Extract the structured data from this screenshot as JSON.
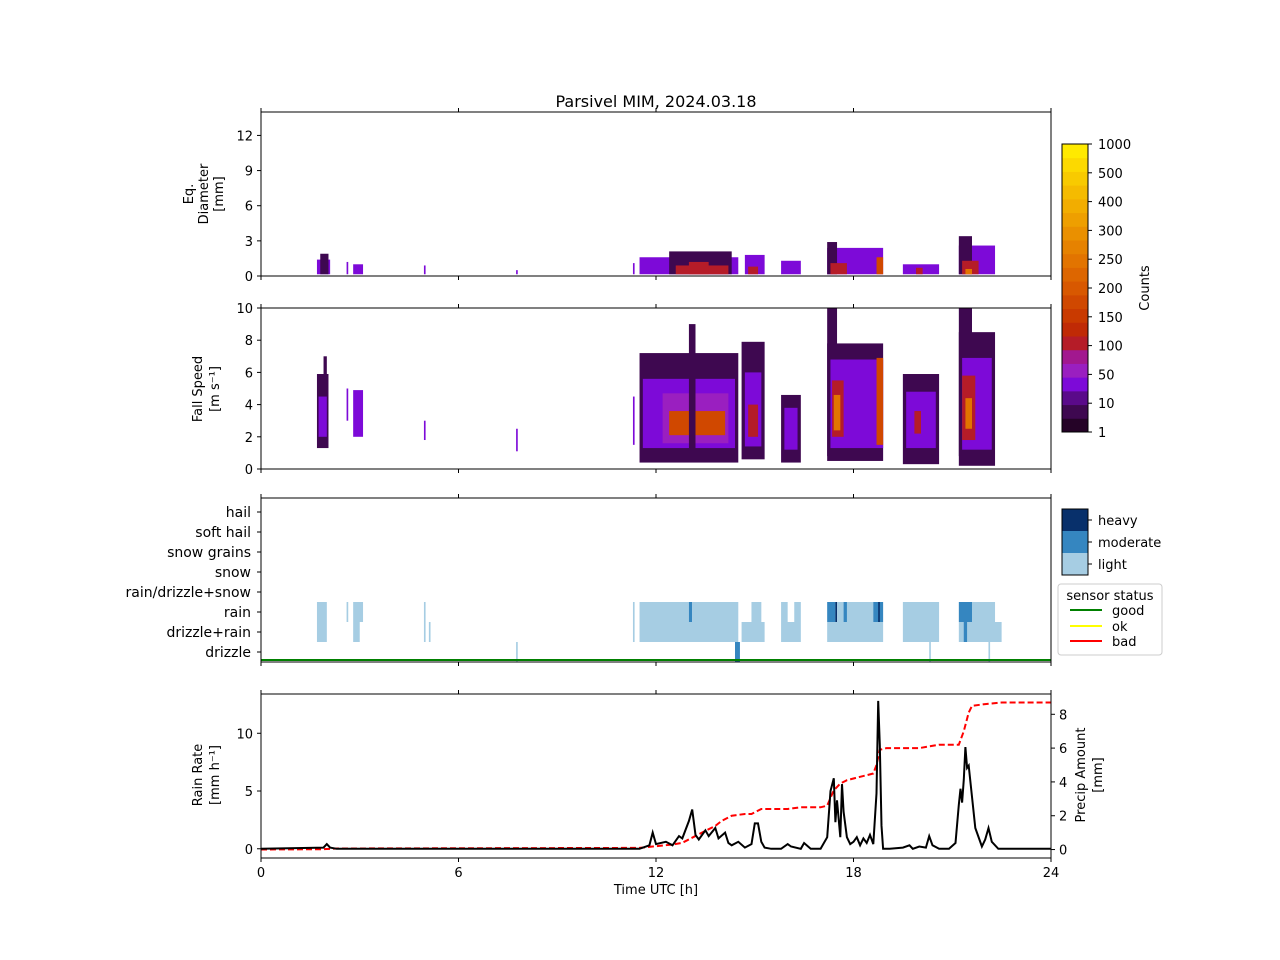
{
  "title": "Parsivel MIM, 2024.03.18",
  "colors": {
    "black": "#000000",
    "cumulative": "#ff0000",
    "status_good": "#008000",
    "status_ok": "#ffff00",
    "status_bad": "#ff0000",
    "light": "#a6cde3",
    "moderate": "#3586c0",
    "heavy": "#08306b"
  },
  "chart_data": [
    {
      "type": "heatmap",
      "panel": "diameter",
      "ylabel_lines": [
        "Eq.",
        "Diameter",
        "[mm]"
      ],
      "x_ticks": [
        0,
        6,
        12,
        18,
        24
      ],
      "xlim": [
        0,
        24
      ],
      "ylim": [
        0,
        14
      ],
      "y_ticks": [
        0,
        3,
        6,
        9,
        12
      ],
      "cells": [
        {
          "t0": 1.7,
          "t1": 2.1,
          "top": 1.4,
          "level": 1
        },
        {
          "t0": 1.8,
          "t1": 2.05,
          "top": 1.9,
          "level": 0
        },
        {
          "t0": 2.6,
          "t1": 2.65,
          "top": 1.2,
          "level": 1
        },
        {
          "t0": 2.8,
          "t1": 3.1,
          "top": 1.0,
          "level": 1
        },
        {
          "t0": 4.95,
          "t1": 5.0,
          "top": 0.9,
          "level": 1
        },
        {
          "t0": 7.75,
          "t1": 7.8,
          "top": 0.5,
          "level": 1
        },
        {
          "t0": 11.3,
          "t1": 11.35,
          "top": 1.1,
          "level": 1
        },
        {
          "t0": 11.5,
          "t1": 14.5,
          "top": 1.6,
          "level": 1
        },
        {
          "t0": 12.4,
          "t1": 14.3,
          "top": 2.1,
          "level": 0
        },
        {
          "t0": 12.6,
          "t1": 14.2,
          "top": 0.9,
          "level": 3
        },
        {
          "t0": 13.0,
          "t1": 13.6,
          "top": 1.2,
          "level": 3
        },
        {
          "t0": 14.7,
          "t1": 15.3,
          "top": 1.8,
          "level": 1
        },
        {
          "t0": 14.8,
          "t1": 15.1,
          "top": 0.8,
          "level": 3
        },
        {
          "t0": 15.8,
          "t1": 16.4,
          "top": 1.3,
          "level": 1
        },
        {
          "t0": 17.2,
          "t1": 18.9,
          "top": 2.4,
          "level": 1
        },
        {
          "t0": 17.2,
          "t1": 17.5,
          "top": 2.9,
          "level": 0
        },
        {
          "t0": 17.3,
          "t1": 17.8,
          "top": 1.1,
          "level": 3
        },
        {
          "t0": 18.7,
          "t1": 18.9,
          "top": 1.6,
          "level": 4
        },
        {
          "t0": 19.5,
          "t1": 20.6,
          "top": 1.0,
          "level": 1
        },
        {
          "t0": 19.9,
          "t1": 20.1,
          "top": 0.7,
          "level": 3
        },
        {
          "t0": 21.2,
          "t1": 22.3,
          "top": 2.6,
          "level": 1
        },
        {
          "t0": 21.2,
          "t1": 21.6,
          "top": 3.4,
          "level": 0
        },
        {
          "t0": 21.3,
          "t1": 21.8,
          "top": 1.3,
          "level": 3
        },
        {
          "t0": 21.4,
          "t1": 21.6,
          "top": 0.6,
          "level": 5
        }
      ]
    },
    {
      "type": "heatmap",
      "panel": "fallspeed",
      "ylabel_lines": [
        "Fall Speed",
        "[m s⁻¹]"
      ],
      "xlim": [
        0,
        24
      ],
      "ylim": [
        0,
        10
      ],
      "y_ticks": [
        0,
        2,
        4,
        6,
        8,
        10
      ],
      "cells": [
        {
          "t0": 1.7,
          "t1": 2.05,
          "bottom": 1.3,
          "top": 5.9,
          "level": 0
        },
        {
          "t0": 1.9,
          "t1": 2.0,
          "bottom": 2.0,
          "top": 7.0,
          "level": 0
        },
        {
          "t0": 1.75,
          "t1": 2.0,
          "bottom": 2.0,
          "top": 4.5,
          "level": 1
        },
        {
          "t0": 2.6,
          "t1": 2.65,
          "bottom": 3.0,
          "top": 5.0,
          "level": 1
        },
        {
          "t0": 2.8,
          "t1": 3.1,
          "bottom": 2.0,
          "top": 4.9,
          "level": 1
        },
        {
          "t0": 4.95,
          "t1": 5.0,
          "bottom": 1.8,
          "top": 3.0,
          "level": 1
        },
        {
          "t0": 7.75,
          "t1": 7.8,
          "bottom": 1.1,
          "top": 2.5,
          "level": 1
        },
        {
          "t0": 11.3,
          "t1": 11.35,
          "bottom": 1.5,
          "top": 4.5,
          "level": 1
        },
        {
          "t0": 11.5,
          "t1": 14.5,
          "bottom": 0.4,
          "top": 7.2,
          "level": 0
        },
        {
          "t0": 11.6,
          "t1": 14.4,
          "bottom": 1.3,
          "top": 5.6,
          "level": 1
        },
        {
          "t0": 12.2,
          "t1": 14.2,
          "bottom": 1.6,
          "top": 4.7,
          "level": 2
        },
        {
          "t0": 12.4,
          "t1": 14.1,
          "bottom": 2.1,
          "top": 3.6,
          "level": 4
        },
        {
          "t0": 13.0,
          "t1": 13.2,
          "bottom": 1.2,
          "top": 9.0,
          "level": 0
        },
        {
          "t0": 14.6,
          "t1": 15.3,
          "bottom": 0.6,
          "top": 7.9,
          "level": 0
        },
        {
          "t0": 14.7,
          "t1": 15.2,
          "bottom": 1.4,
          "top": 6.0,
          "level": 1
        },
        {
          "t0": 14.8,
          "t1": 15.1,
          "bottom": 2.0,
          "top": 4.0,
          "level": 3
        },
        {
          "t0": 15.8,
          "t1": 16.4,
          "bottom": 0.4,
          "top": 4.6,
          "level": 0
        },
        {
          "t0": 15.9,
          "t1": 16.3,
          "bottom": 1.2,
          "top": 3.8,
          "level": 1
        },
        {
          "t0": 17.2,
          "t1": 18.9,
          "bottom": 0.5,
          "top": 7.8,
          "level": 0
        },
        {
          "t0": 17.2,
          "t1": 17.5,
          "bottom": 0.8,
          "top": 10.0,
          "level": 0
        },
        {
          "t0": 17.3,
          "t1": 18.9,
          "bottom": 1.3,
          "top": 6.8,
          "level": 1
        },
        {
          "t0": 17.35,
          "t1": 17.7,
          "bottom": 2.0,
          "top": 5.5,
          "level": 3
        },
        {
          "t0": 17.4,
          "t1": 17.6,
          "bottom": 2.4,
          "top": 4.6,
          "level": 5
        },
        {
          "t0": 18.7,
          "t1": 18.9,
          "bottom": 1.5,
          "top": 6.9,
          "level": 4
        },
        {
          "t0": 19.5,
          "t1": 20.6,
          "bottom": 0.3,
          "top": 5.9,
          "level": 0
        },
        {
          "t0": 19.6,
          "t1": 20.5,
          "bottom": 1.3,
          "top": 4.8,
          "level": 1
        },
        {
          "t0": 19.85,
          "t1": 20.05,
          "bottom": 2.2,
          "top": 3.6,
          "level": 3
        },
        {
          "t0": 21.2,
          "t1": 22.3,
          "bottom": 0.2,
          "top": 8.5,
          "level": 0
        },
        {
          "t0": 21.2,
          "t1": 21.6,
          "bottom": 0.8,
          "top": 10.0,
          "level": 0
        },
        {
          "t0": 21.3,
          "t1": 22.2,
          "bottom": 1.2,
          "top": 6.9,
          "level": 1
        },
        {
          "t0": 21.3,
          "t1": 21.7,
          "bottom": 1.8,
          "top": 5.8,
          "level": 3
        },
        {
          "t0": 21.4,
          "t1": 21.6,
          "bottom": 2.5,
          "top": 4.4,
          "level": 5
        }
      ]
    },
    {
      "type": "table",
      "panel": "precip_type",
      "categories": [
        "hail",
        "soft hail",
        "snow grains",
        "snow",
        "rain/drizzle+snow",
        "rain",
        "drizzle+rain",
        "drizzle"
      ],
      "intensity_labels": [
        "heavy",
        "moderate",
        "light"
      ],
      "legend_title": "sensor status",
      "status_labels": [
        "good",
        "ok",
        "bad"
      ],
      "status": "good",
      "bars": {
        "rain": [
          [
            1.7,
            2.0,
            "light"
          ],
          [
            2.6,
            2.65,
            "light"
          ],
          [
            2.8,
            3.1,
            "light"
          ],
          [
            4.95,
            5.0,
            "light"
          ],
          [
            11.3,
            11.35,
            "light"
          ],
          [
            11.5,
            13.0,
            "light"
          ],
          [
            13.0,
            13.1,
            "moderate"
          ],
          [
            13.1,
            14.5,
            "light"
          ],
          [
            14.9,
            15.2,
            "light"
          ],
          [
            15.8,
            16.0,
            "light"
          ],
          [
            16.2,
            16.4,
            "light"
          ],
          [
            17.2,
            17.45,
            "moderate"
          ],
          [
            17.45,
            17.5,
            "heavy"
          ],
          [
            17.5,
            18.6,
            "light"
          ],
          [
            17.7,
            17.8,
            "moderate"
          ],
          [
            18.6,
            18.9,
            "moderate"
          ],
          [
            18.75,
            18.8,
            "heavy"
          ],
          [
            19.5,
            20.6,
            "light"
          ],
          [
            21.2,
            21.6,
            "moderate"
          ],
          [
            21.6,
            22.3,
            "light"
          ]
        ],
        "drizzle+rain": [
          [
            1.7,
            2.0,
            "light"
          ],
          [
            2.8,
            3.0,
            "light"
          ],
          [
            4.95,
            5.0,
            "light"
          ],
          [
            5.1,
            5.15,
            "light"
          ],
          [
            11.3,
            11.35,
            "light"
          ],
          [
            11.5,
            14.5,
            "light"
          ],
          [
            14.6,
            15.3,
            "light"
          ],
          [
            15.8,
            16.4,
            "light"
          ],
          [
            17.2,
            18.9,
            "light"
          ],
          [
            19.5,
            20.6,
            "light"
          ],
          [
            21.2,
            22.5,
            "light"
          ],
          [
            21.35,
            21.45,
            "moderate"
          ]
        ],
        "drizzle": [
          [
            7.75,
            7.8,
            "light"
          ],
          [
            14.4,
            14.55,
            "moderate"
          ],
          [
            20.3,
            20.35,
            "light"
          ],
          [
            22.1,
            22.15,
            "light"
          ]
        ]
      }
    },
    {
      "type": "line",
      "panel": "rain_rate",
      "xlabel": "Time UTC [h]",
      "ylabel_lines": [
        "Rain Rate",
        "[mm h⁻¹]"
      ],
      "ylabel2_lines": [
        "Precip Amount",
        "[mm]"
      ],
      "xlim": [
        0,
        24
      ],
      "x_ticks": [
        0,
        6,
        12,
        18,
        24
      ],
      "ylim": [
        -0.8,
        13.4
      ],
      "y_ticks": [
        0,
        5,
        10
      ],
      "y2lim": [
        -0.5,
        9.2
      ],
      "y2_ticks": [
        0,
        2,
        4,
        6,
        8
      ],
      "series": [
        {
          "axis": "left",
          "x": [
            0,
            1.9,
            2.0,
            2.1,
            2.3,
            11.5,
            11.8,
            11.9,
            12.0,
            12.3,
            12.5,
            12.7,
            12.8,
            13.0,
            13.1,
            13.2,
            13.3,
            13.5,
            13.6,
            13.8,
            13.9,
            14.1,
            14.2,
            14.3,
            14.5,
            14.7,
            14.9,
            15.0,
            15.1,
            15.2,
            15.3,
            15.5,
            15.8,
            16.0,
            16.1,
            16.4,
            16.5,
            16.7,
            17.0,
            17.2,
            17.3,
            17.4,
            17.45,
            17.5,
            17.6,
            17.65,
            17.7,
            17.8,
            17.9,
            18.0,
            18.1,
            18.2,
            18.3,
            18.4,
            18.5,
            18.6,
            18.7,
            18.75,
            18.8,
            18.85,
            18.9,
            19.1,
            19.5,
            19.7,
            19.8,
            20.0,
            20.2,
            20.3,
            20.4,
            20.6,
            20.9,
            21.1,
            21.2,
            21.25,
            21.3,
            21.35,
            21.4,
            21.45,
            21.5,
            21.6,
            21.7,
            21.9,
            22.0,
            22.1,
            22.2,
            22.4,
            24
          ],
          "y": [
            0,
            0.1,
            0.4,
            0.1,
            0,
            0,
            0.3,
            1.4,
            0.4,
            0.6,
            0.3,
            1.1,
            0.9,
            2.4,
            3.4,
            1.2,
            0.8,
            1.6,
            1.1,
            1.8,
            0.9,
            1.4,
            0.5,
            0.3,
            0.6,
            0.1,
            0.4,
            2.2,
            2.2,
            0.6,
            0.1,
            0,
            0,
            0.4,
            0.2,
            0,
            0.5,
            0,
            0,
            1.0,
            5.0,
            6.1,
            2.3,
            4.2,
            1.0,
            5.6,
            3.2,
            1.0,
            0.4,
            0.6,
            1.0,
            0.3,
            0.9,
            0.5,
            1.2,
            0.4,
            4.8,
            12.8,
            9.0,
            2.0,
            0,
            0,
            0.1,
            0.3,
            0,
            0.2,
            0.1,
            1.1,
            0.3,
            0,
            0,
            0.5,
            3.8,
            5.2,
            4.0,
            6.0,
            8.8,
            7.0,
            7.2,
            4.5,
            1.8,
            0.2,
            0.8,
            1.8,
            0.6,
            0,
            0
          ]
        },
        {
          "axis": "right",
          "style": "dashed",
          "x": [
            0,
            1.9,
            2.3,
            11.5,
            12.0,
            12.5,
            12.8,
            13.1,
            13.5,
            13.8,
            14.0,
            14.3,
            14.7,
            14.9,
            15.2,
            15.5,
            16.0,
            16.4,
            17.0,
            17.2,
            17.4,
            17.6,
            17.8,
            18.0,
            18.2,
            18.4,
            18.6,
            18.7,
            18.8,
            19.0,
            19.5,
            20.0,
            20.3,
            20.6,
            21.0,
            21.2,
            21.35,
            21.5,
            21.6,
            22.0,
            22.5,
            24
          ],
          "y": [
            0,
            0.02,
            0.06,
            0.1,
            0.2,
            0.3,
            0.4,
            0.7,
            1.1,
            1.4,
            1.7,
            2.0,
            2.1,
            2.1,
            2.4,
            2.4,
            2.4,
            2.5,
            2.5,
            2.6,
            3.5,
            3.9,
            4.1,
            4.2,
            4.3,
            4.4,
            4.5,
            5.0,
            5.9,
            6.0,
            6.0,
            6.0,
            6.1,
            6.2,
            6.2,
            6.2,
            7.0,
            8.1,
            8.5,
            8.6,
            8.7,
            8.7
          ]
        }
      ]
    }
  ],
  "colorbar": {
    "label": "Counts",
    "tick_labels": [
      "1",
      "10",
      "50",
      "100",
      "150",
      "200",
      "250",
      "300",
      "400",
      "500",
      "1000"
    ],
    "levels": [
      "#250327",
      "#3e0850",
      "#5a0a8a",
      "#7d0ad8",
      "#9a1fc0",
      "#a2188f",
      "#b51c28",
      "#c02a05",
      "#c93a00",
      "#d04800",
      "#d85800",
      "#dd6600",
      "#e27400",
      "#e68200",
      "#ea9000",
      "#ee9f00",
      "#f2ad00",
      "#f5bb00",
      "#f8ca00",
      "#fcd900",
      "#ffea00"
    ]
  }
}
